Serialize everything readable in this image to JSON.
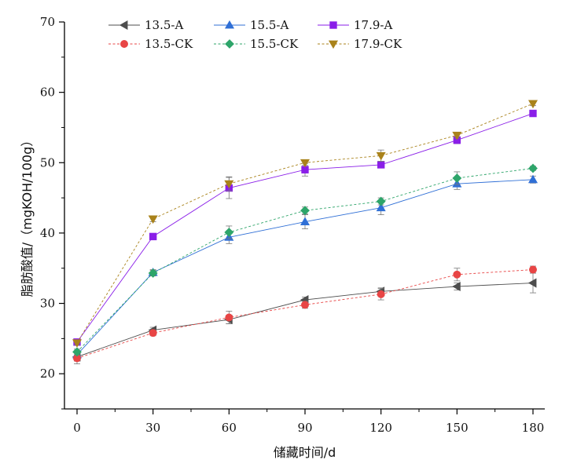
{
  "chart_data": {
    "type": "line",
    "xlabel": "储藏时间/d",
    "ylabel": "脂肪酸值/（mgKOH/100g）",
    "x": [
      0,
      30,
      60,
      90,
      120,
      150,
      180
    ],
    "xticks": [
      "0",
      "30",
      "60",
      "90",
      "120",
      "150",
      "180"
    ],
    "yticks": [
      "20",
      "30",
      "40",
      "50",
      "60",
      "70"
    ],
    "xlim": [
      -5,
      185
    ],
    "ylim": [
      15,
      70
    ],
    "grid": false,
    "legend_position": "top-left",
    "series": [
      {
        "name": "13.5-A",
        "marker": "triangle-left",
        "dash": "solid",
        "color": "#4d4d4d",
        "values": [
          22.4,
          26.2,
          27.7,
          30.5,
          31.7,
          32.4,
          32.9
        ],
        "errors": [
          0.6,
          0.4,
          0.6,
          0.4,
          0.5,
          0.5,
          1.4
        ]
      },
      {
        "name": "15.5-A",
        "marker": "triangle-up",
        "dash": "solid",
        "color": "#2f6fd6",
        "values": [
          22.7,
          34.4,
          39.4,
          41.6,
          43.6,
          47.0,
          47.6
        ],
        "errors": [
          0.5,
          0.4,
          0.9,
          1.0,
          1.0,
          0.8,
          0.5
        ]
      },
      {
        "name": "17.9-A",
        "marker": "square",
        "dash": "solid",
        "color": "#8a1ee8",
        "values": [
          24.5,
          39.5,
          46.4,
          49.0,
          49.7,
          53.2,
          57.0
        ],
        "errors": [
          0.4,
          0.4,
          1.5,
          0.9,
          0.4,
          0.5,
          0.4
        ]
      },
      {
        "name": "13.5-CK",
        "marker": "circle",
        "dash": "dashed",
        "color": "#e84545",
        "values": [
          22.2,
          25.8,
          28.0,
          29.8,
          31.3,
          34.1,
          34.8
        ],
        "errors": [
          0.8,
          0.4,
          0.9,
          0.5,
          0.8,
          0.9,
          0.5
        ]
      },
      {
        "name": "15.5-CK",
        "marker": "diamond",
        "dash": "dashed",
        "color": "#2ea56a",
        "values": [
          23.1,
          34.3,
          40.1,
          43.2,
          44.5,
          47.8,
          49.2
        ],
        "errors": [
          0.4,
          0.4,
          0.9,
          0.5,
          0.5,
          0.9,
          0.3
        ]
      },
      {
        "name": "17.9-CK",
        "marker": "triangle-down",
        "dash": "dashed",
        "color": "#a9821a",
        "values": [
          24.4,
          42.0,
          47.0,
          50.0,
          51.0,
          53.9,
          58.4
        ],
        "errors": [
          0.3,
          0.4,
          1.0,
          0.4,
          0.8,
          0.4,
          0.3
        ]
      }
    ]
  }
}
